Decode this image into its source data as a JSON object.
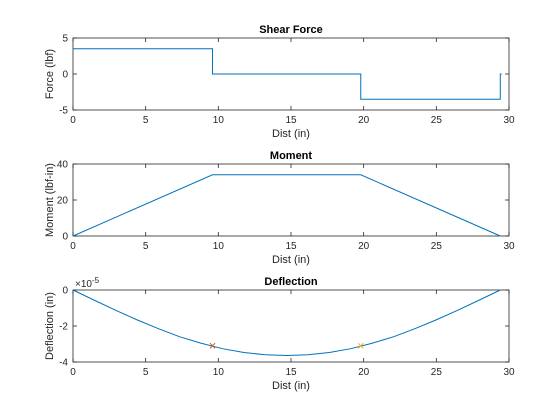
{
  "chart_data": [
    {
      "type": "line",
      "title": "Shear Force",
      "xlabel": "Dist (in)",
      "ylabel": "Force (lbf)",
      "xlim": [
        0,
        30
      ],
      "ylim": [
        -5,
        5
      ],
      "xticks": [
        0,
        5,
        10,
        15,
        20,
        25,
        30
      ],
      "yticks": [
        -5,
        0,
        5
      ],
      "exponent": "",
      "grid": false,
      "color": "#0072BD",
      "series": [
        {
          "x": [
            0,
            9.6,
            9.6,
            19.8,
            19.8,
            29.4,
            29.4,
            29.5
          ],
          "y": [
            3.5,
            3.5,
            0,
            0,
            -3.5,
            -3.5,
            0,
            0
          ]
        }
      ]
    },
    {
      "type": "line",
      "title": "Moment",
      "xlabel": "Dist (in)",
      "ylabel": "Moment (lbf-in)",
      "xlim": [
        0,
        30
      ],
      "ylim": [
        0,
        40
      ],
      "xticks": [
        0,
        5,
        10,
        15,
        20,
        25,
        30
      ],
      "yticks": [
        0,
        20,
        40
      ],
      "exponent": "",
      "grid": false,
      "color": "#0072BD",
      "series": [
        {
          "x": [
            0,
            9.6,
            19.8,
            29.4
          ],
          "y": [
            0,
            34,
            34,
            0
          ]
        }
      ]
    },
    {
      "type": "line",
      "title": "Deflection",
      "xlabel": "Dist (in)",
      "ylabel": "Deflection (in)",
      "xlim": [
        0,
        30
      ],
      "ylim": [
        -4e-05,
        0
      ],
      "xticks": [
        0,
        5,
        10,
        15,
        20,
        25,
        30
      ],
      "yticks": [
        -4e-05,
        -2e-05,
        0
      ],
      "ytick_labels": [
        "-4",
        "-2",
        "0"
      ],
      "exponent": "-5",
      "grid": false,
      "color": "#0072BD",
      "series": [
        {
          "x": [
            0,
            1.47,
            2.94,
            4.41,
            5.88,
            7.35,
            8.82,
            10.29,
            11.76,
            13.23,
            14.7,
            16.17,
            17.64,
            19.11,
            20.58,
            22.05,
            23.52,
            24.99,
            26.46,
            27.93,
            29.4
          ],
          "y": [
            0,
            -5.7e-06,
            -1.13e-05,
            -1.66e-05,
            -2.15e-05,
            -2.6e-05,
            -2.96e-05,
            -3.26e-05,
            -3.47e-05,
            -3.6e-05,
            -3.64e-05,
            -3.6e-05,
            -3.47e-05,
            -3.26e-05,
            -2.96e-05,
            -2.6e-05,
            -2.15e-05,
            -1.66e-05,
            -1.13e-05,
            -5.7e-06,
            0
          ]
        }
      ],
      "markers": [
        {
          "x": 9.6,
          "y": -3.1e-05,
          "symbol": "x",
          "color": "#D95319"
        },
        {
          "x": 19.8,
          "y": -3.1e-05,
          "symbol": "x",
          "color": "#EDB120"
        }
      ]
    }
  ]
}
